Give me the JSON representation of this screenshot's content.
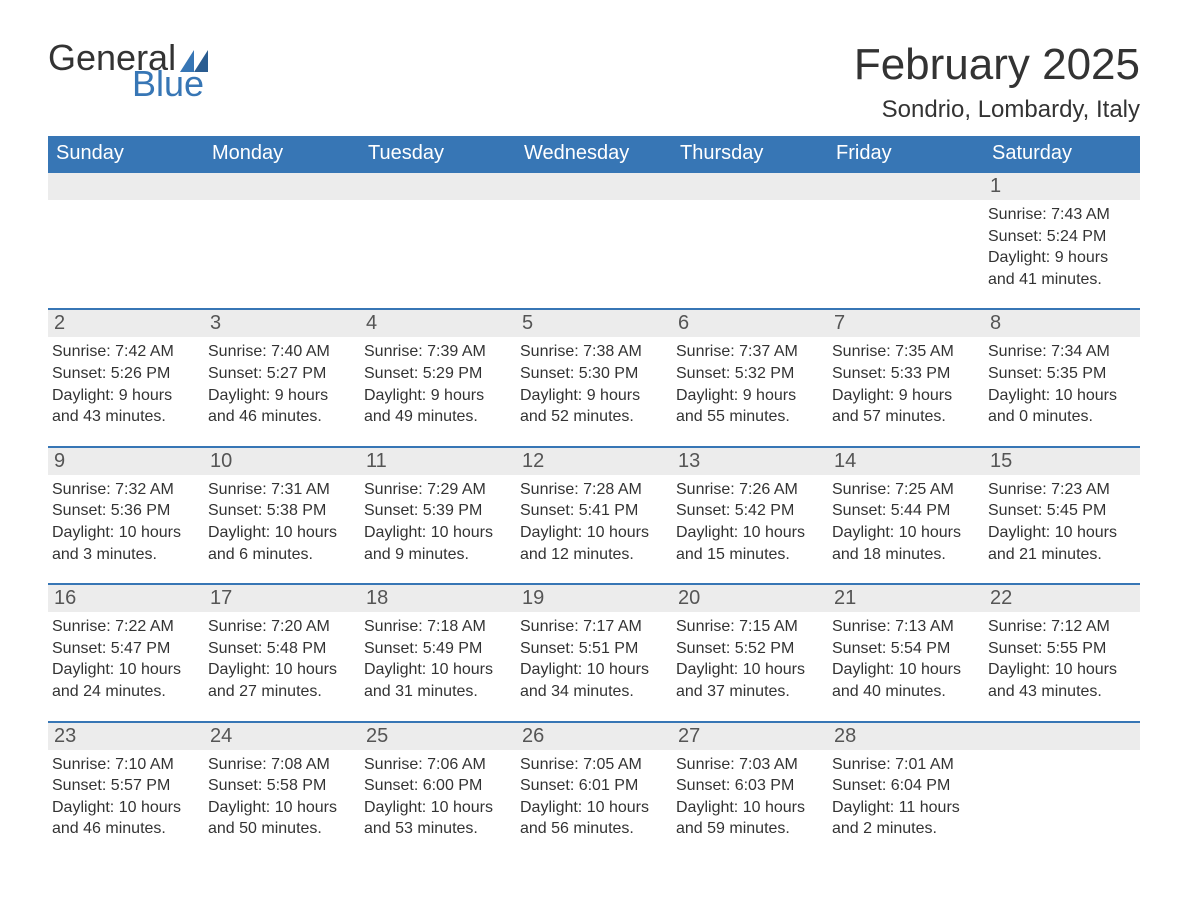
{
  "logo": {
    "text1": "General",
    "text2": "Blue",
    "flag_color": "#3776b5"
  },
  "title": "February 2025",
  "location": "Sondrio, Lombardy, Italy",
  "colors": {
    "header_bg": "#3776b5",
    "header_text": "#ffffff",
    "row_border": "#3776b5",
    "daynum_bg": "#ececec",
    "body_text": "#333333",
    "page_bg": "#ffffff"
  },
  "typography": {
    "title_fontsize": 44,
    "location_fontsize": 24,
    "header_fontsize": 20,
    "daynum_fontsize": 20,
    "body_fontsize": 16
  },
  "weekdays": [
    "Sunday",
    "Monday",
    "Tuesday",
    "Wednesday",
    "Thursday",
    "Friday",
    "Saturday"
  ],
  "weeks": [
    [
      null,
      null,
      null,
      null,
      null,
      null,
      {
        "day": 1,
        "sunrise": "7:43 AM",
        "sunset": "5:24 PM",
        "daylight": "9 hours and 41 minutes."
      }
    ],
    [
      {
        "day": 2,
        "sunrise": "7:42 AM",
        "sunset": "5:26 PM",
        "daylight": "9 hours and 43 minutes."
      },
      {
        "day": 3,
        "sunrise": "7:40 AM",
        "sunset": "5:27 PM",
        "daylight": "9 hours and 46 minutes."
      },
      {
        "day": 4,
        "sunrise": "7:39 AM",
        "sunset": "5:29 PM",
        "daylight": "9 hours and 49 minutes."
      },
      {
        "day": 5,
        "sunrise": "7:38 AM",
        "sunset": "5:30 PM",
        "daylight": "9 hours and 52 minutes."
      },
      {
        "day": 6,
        "sunrise": "7:37 AM",
        "sunset": "5:32 PM",
        "daylight": "9 hours and 55 minutes."
      },
      {
        "day": 7,
        "sunrise": "7:35 AM",
        "sunset": "5:33 PM",
        "daylight": "9 hours and 57 minutes."
      },
      {
        "day": 8,
        "sunrise": "7:34 AM",
        "sunset": "5:35 PM",
        "daylight": "10 hours and 0 minutes."
      }
    ],
    [
      {
        "day": 9,
        "sunrise": "7:32 AM",
        "sunset": "5:36 PM",
        "daylight": "10 hours and 3 minutes."
      },
      {
        "day": 10,
        "sunrise": "7:31 AM",
        "sunset": "5:38 PM",
        "daylight": "10 hours and 6 minutes."
      },
      {
        "day": 11,
        "sunrise": "7:29 AM",
        "sunset": "5:39 PM",
        "daylight": "10 hours and 9 minutes."
      },
      {
        "day": 12,
        "sunrise": "7:28 AM",
        "sunset": "5:41 PM",
        "daylight": "10 hours and 12 minutes."
      },
      {
        "day": 13,
        "sunrise": "7:26 AM",
        "sunset": "5:42 PM",
        "daylight": "10 hours and 15 minutes."
      },
      {
        "day": 14,
        "sunrise": "7:25 AM",
        "sunset": "5:44 PM",
        "daylight": "10 hours and 18 minutes."
      },
      {
        "day": 15,
        "sunrise": "7:23 AM",
        "sunset": "5:45 PM",
        "daylight": "10 hours and 21 minutes."
      }
    ],
    [
      {
        "day": 16,
        "sunrise": "7:22 AM",
        "sunset": "5:47 PM",
        "daylight": "10 hours and 24 minutes."
      },
      {
        "day": 17,
        "sunrise": "7:20 AM",
        "sunset": "5:48 PM",
        "daylight": "10 hours and 27 minutes."
      },
      {
        "day": 18,
        "sunrise": "7:18 AM",
        "sunset": "5:49 PM",
        "daylight": "10 hours and 31 minutes."
      },
      {
        "day": 19,
        "sunrise": "7:17 AM",
        "sunset": "5:51 PM",
        "daylight": "10 hours and 34 minutes."
      },
      {
        "day": 20,
        "sunrise": "7:15 AM",
        "sunset": "5:52 PM",
        "daylight": "10 hours and 37 minutes."
      },
      {
        "day": 21,
        "sunrise": "7:13 AM",
        "sunset": "5:54 PM",
        "daylight": "10 hours and 40 minutes."
      },
      {
        "day": 22,
        "sunrise": "7:12 AM",
        "sunset": "5:55 PM",
        "daylight": "10 hours and 43 minutes."
      }
    ],
    [
      {
        "day": 23,
        "sunrise": "7:10 AM",
        "sunset": "5:57 PM",
        "daylight": "10 hours and 46 minutes."
      },
      {
        "day": 24,
        "sunrise": "7:08 AM",
        "sunset": "5:58 PM",
        "daylight": "10 hours and 50 minutes."
      },
      {
        "day": 25,
        "sunrise": "7:06 AM",
        "sunset": "6:00 PM",
        "daylight": "10 hours and 53 minutes."
      },
      {
        "day": 26,
        "sunrise": "7:05 AM",
        "sunset": "6:01 PM",
        "daylight": "10 hours and 56 minutes."
      },
      {
        "day": 27,
        "sunrise": "7:03 AM",
        "sunset": "6:03 PM",
        "daylight": "10 hours and 59 minutes."
      },
      {
        "day": 28,
        "sunrise": "7:01 AM",
        "sunset": "6:04 PM",
        "daylight": "11 hours and 2 minutes."
      },
      null
    ]
  ]
}
